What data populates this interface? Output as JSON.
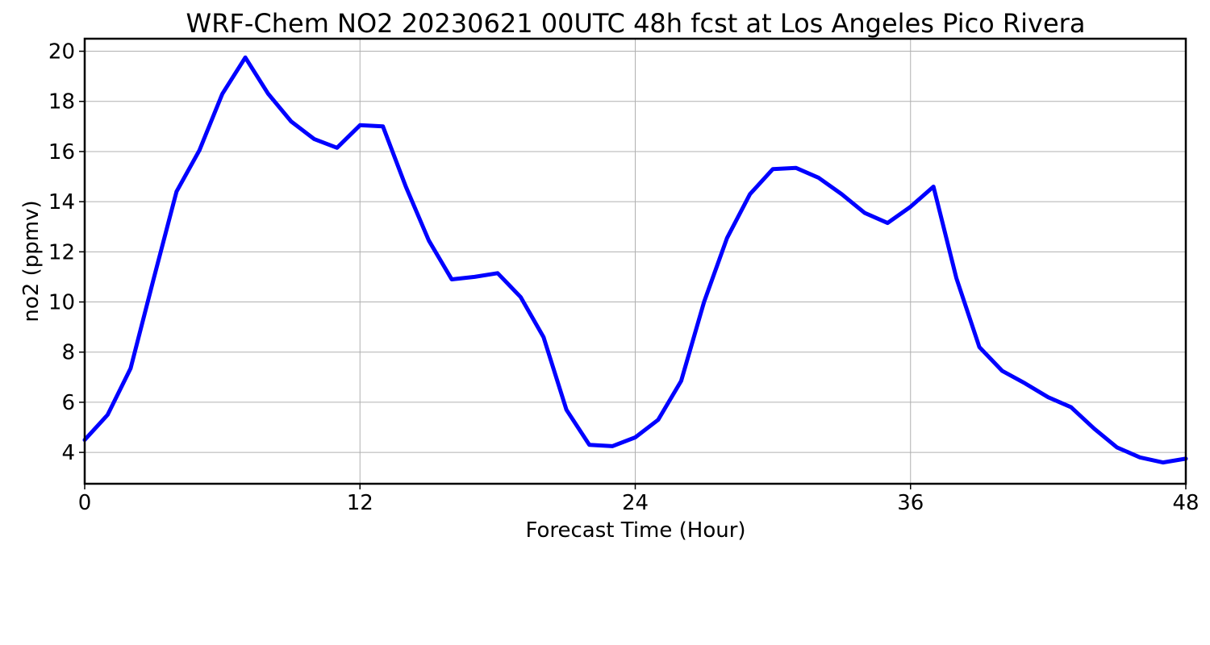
{
  "chart_data": {
    "type": "line",
    "title": "WRF-Chem NO2  20230621 00UTC 48h fcst at Los Angeles Pico Rivera",
    "xlabel": "Forecast Time (Hour)",
    "ylabel": "no2  (ppmv)",
    "xlim": [
      0,
      48
    ],
    "ylim": [
      2.75,
      20.5
    ],
    "xticks": [
      0,
      12,
      24,
      36,
      48
    ],
    "yticks": [
      4,
      6,
      8,
      10,
      12,
      14,
      16,
      18,
      20
    ],
    "grid": true,
    "series": [
      {
        "color": "#0000ff",
        "x": [
          0,
          1,
          2,
          3,
          4,
          5,
          6,
          7,
          8,
          9,
          10,
          11,
          12,
          13,
          14,
          15,
          16,
          17,
          18,
          19,
          20,
          21,
          22,
          23,
          24,
          25,
          26,
          27,
          28,
          29,
          30,
          31,
          32,
          33,
          34,
          35,
          36,
          37,
          38,
          39,
          40,
          41,
          42,
          43,
          44,
          45,
          46,
          47,
          48
        ],
        "values": [
          4.5,
          5.5,
          7.35,
          10.9,
          14.4,
          16.05,
          18.3,
          19.75,
          18.3,
          17.2,
          16.5,
          16.15,
          17.05,
          17.0,
          14.6,
          12.45,
          10.9,
          11.0,
          11.15,
          10.2,
          8.6,
          5.7,
          4.3,
          4.25,
          4.6,
          5.3,
          6.85,
          10.0,
          12.55,
          14.3,
          15.3,
          15.35,
          14.95,
          14.3,
          13.55,
          13.15,
          13.8,
          14.6,
          10.95,
          8.2,
          7.25,
          6.75,
          6.2,
          5.8,
          4.95,
          4.2,
          3.8,
          3.6,
          3.75
        ]
      }
    ]
  }
}
